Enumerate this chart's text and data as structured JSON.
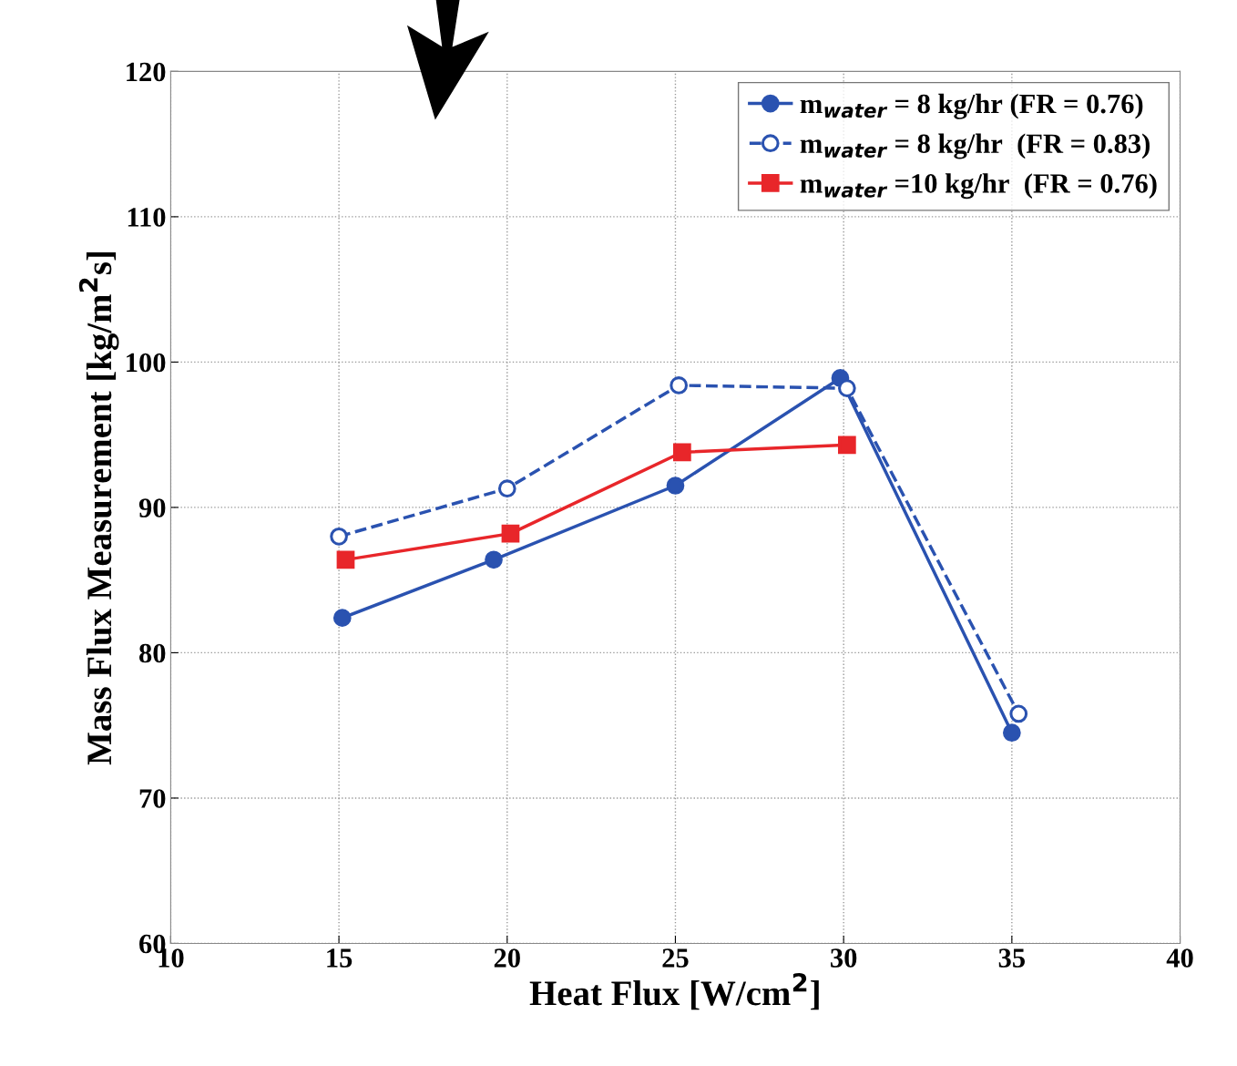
{
  "chart_data": {
    "type": "line",
    "xlabel": "Heat Flux [W/cm$^{2}$]",
    "ylabel": "Mass Flux Measurement [kg/m$^{2}$s]",
    "xlim": [
      10,
      40
    ],
    "xticks": [
      10,
      15,
      20,
      25,
      30,
      35,
      40
    ],
    "ylim": [
      60,
      120
    ],
    "yticks": [
      60,
      70,
      80,
      90,
      100,
      110,
      120
    ],
    "grid": true,
    "legend": "top right",
    "series": [
      {
        "name": "m$_{water}$ = 8 kg/hr (FR = 0.76)",
        "color": "#2a52b0",
        "marker": "circle",
        "line_style": "solid",
        "x": [
          15.1,
          19.6,
          25.0,
          29.9,
          35.0
        ],
        "values": [
          82.4,
          86.4,
          91.5,
          98.9,
          74.5
        ]
      },
      {
        "name": "m$_{water}$ = 8 kg/hr  (FR = 0.83)",
        "color": "#2a52b0",
        "marker": "circle",
        "line_style": "dashed",
        "x": [
          15.0,
          20.0,
          25.1,
          30.1,
          35.2
        ],
        "values": [
          88.0,
          91.3,
          98.4,
          98.2,
          75.8
        ]
      },
      {
        "name": "m$_{water}$ =10 kg/hr  (FR = 0.76)",
        "color": "#e8262a",
        "marker": "square",
        "line_style": "solid",
        "x": [
          15.2,
          20.1,
          25.2,
          30.1
        ],
        "values": [
          86.4,
          88.2,
          93.8,
          94.3
        ]
      }
    ]
  }
}
